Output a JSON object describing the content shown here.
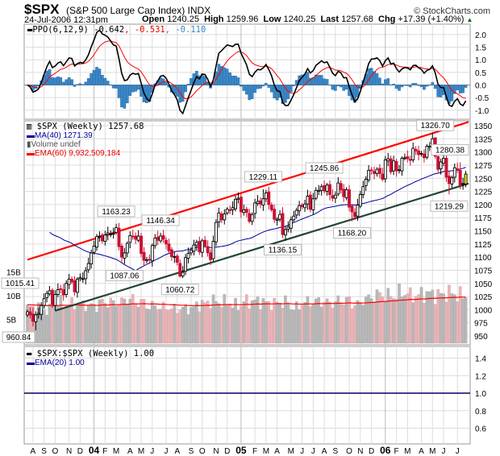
{
  "header": {
    "symbol": "$SPX",
    "name": "(S&P 500 Large Cap Index) INDX",
    "brand": "© StockCharts.com",
    "date": "24-Jul-2006 12:31pm",
    "open_label": "Open",
    "open": "1240.25",
    "high_label": "High",
    "high": "1259.96",
    "low_label": "Low",
    "low": "1240.25",
    "last_label": "Last",
    "last": "1257.68",
    "chg_label": "Chg",
    "chg": "+17.39 (+1.40%)",
    "chg_icon": "up-triangle-icon"
  },
  "ppo_legend": {
    "name": "PPO(6,12,9)",
    "v1": "-0.642",
    "v2": ", -0.531",
    "v3": ", -0.110"
  },
  "price_legend": {
    "main": "$SPX (Weekly) 1257.68",
    "ma": "MA(40) 1271.39",
    "volume": "Volume undef",
    "ema": "EMA(60) 9,932,509,184"
  },
  "ratio_legend": {
    "main": "$SPX:$SPX (Weekly) 1.00",
    "ema": "EMA(20) 1.00"
  },
  "colors": {
    "up": "#000000",
    "down": "#cc1133",
    "ma": "#000099",
    "ema": "#ff0000",
    "upper_trend": "#ff0000",
    "lower_trend": "#224433",
    "hist": "#3a87c8",
    "vol_up": "#b8b8b8",
    "vol_down": "#e8b4b8",
    "last": "#ffee00"
  },
  "chart_data": {
    "type": "candlestick",
    "timeframe": "weekly",
    "closes": [
      996,
      990,
      978,
      990,
      993,
      1008,
      1021,
      1031,
      1036,
      1010,
      1029,
      1038,
      1039,
      1028,
      1050,
      1058,
      1053,
      1034,
      1058,
      1061,
      1059,
      1074,
      1088,
      1108,
      1121,
      1139,
      1140,
      1131,
      1142,
      1146,
      1144,
      1145,
      1156,
      1120,
      1100,
      1108,
      1126,
      1141,
      1139,
      1134,
      1140,
      1107,
      1094,
      1095,
      1095,
      1122,
      1136,
      1132,
      1140,
      1134,
      1125,
      1112,
      1101,
      1101,
      1090,
      1064,
      1071,
      1099,
      1107,
      1113,
      1123,
      1128,
      1110,
      1131,
      1122,
      1108,
      1095,
      1130,
      1166,
      1184,
      1171,
      1182,
      1191,
      1189,
      1194,
      1210,
      1212,
      1186,
      1190,
      1185,
      1168,
      1181,
      1203,
      1206,
      1201,
      1211,
      1222,
      1200,
      1190,
      1172,
      1172,
      1181,
      1143,
      1152,
      1157,
      1171,
      1178,
      1189,
      1198,
      1196,
      1201,
      1216,
      1191,
      1211,
      1227,
      1227,
      1234,
      1226,
      1237,
      1219,
      1212,
      1218,
      1241,
      1228,
      1215,
      1228,
      1195,
      1186,
      1177,
      1199,
      1219,
      1234,
      1248,
      1265,
      1265,
      1259,
      1267,
      1259,
      1248,
      1285,
      1287,
      1262,
      1283,
      1264,
      1266,
      1288,
      1289,
      1287,
      1284,
      1307,
      1302,
      1295,
      1297,
      1289,
      1311,
      1311,
      1325,
      1292,
      1267,
      1281,
      1288,
      1252,
      1240,
      1251,
      1270,
      1265,
      1237,
      1240,
      1258
    ],
    "volume_monthly_B": [
      7.5,
      7.0,
      8.5,
      8.2,
      8.0,
      7.8,
      8.6,
      8.5,
      9.2,
      8.6,
      7.8,
      7.5,
      7.2,
      7.3,
      8.2,
      8.8,
      8.6,
      7.9,
      8.8,
      8.8,
      8.4,
      8.6,
      7.5,
      8.6,
      8.8,
      8.5,
      9.0,
      8.2,
      9.4,
      10.2,
      10.0,
      10.6,
      10.0,
      10.4,
      10.2,
      10.5,
      10.0
    ],
    "annotations": [
      {
        "label": "960.84",
        "week": 3,
        "value": 960.84,
        "type": "low"
      },
      {
        "label": "1015.41",
        "week": 0,
        "value": 1015.41,
        "type": "left"
      },
      {
        "label": "1163.23",
        "week": 32,
        "value": 1163.23,
        "type": "high"
      },
      {
        "label": "1087.06",
        "week": 35,
        "value": 1087.06,
        "type": "low"
      },
      {
        "label": "1146.34",
        "week": 48,
        "value": 1146.34,
        "type": "high"
      },
      {
        "label": "1060.72",
        "week": 55,
        "value": 1060.72,
        "type": "low"
      },
      {
        "label": "1229.11",
        "week": 85,
        "value": 1229.11,
        "type": "high"
      },
      {
        "label": "1136.15",
        "week": 92,
        "value": 1136.15,
        "type": "low"
      },
      {
        "label": "1245.86",
        "week": 107,
        "value": 1245.86,
        "type": "high"
      },
      {
        "label": "1168.20",
        "week": 117,
        "value": 1168.2,
        "type": "low"
      },
      {
        "label": "1326.70",
        "week": 147,
        "value": 1326.7,
        "type": "high"
      },
      {
        "label": "1219.29",
        "week": 152,
        "value": 1219.29,
        "type": "low"
      },
      {
        "label": "1280.38",
        "week": 156,
        "value": 1280.38,
        "type": "high"
      }
    ],
    "trendlines": [
      {
        "name": "upper",
        "from": {
          "week": 0,
          "value": 1095
        },
        "to": {
          "week": 159,
          "value": 1357
        }
      },
      {
        "name": "lower",
        "from": {
          "week": 10,
          "value": 998
        },
        "to": {
          "week": 159,
          "value": 1240
        }
      }
    ],
    "price_ticks": [
      1350,
      1325,
      1300,
      1275,
      1250,
      1225,
      1200,
      1175,
      1150,
      1125,
      1100,
      1075,
      1050,
      1025,
      1000,
      975,
      950
    ],
    "volume_ticks": [
      {
        "label": "15B",
        "value": 15
      },
      {
        "label": "10B",
        "value": 10
      },
      {
        "label": "5B",
        "value": 5
      }
    ],
    "ppo_ticks": [
      "2.0",
      "1.5",
      "1.0",
      "0.5",
      "0.0",
      "-0.5",
      "-1.0"
    ],
    "ratio_ticks": [
      "1.4",
      "1.2",
      "1.0",
      "0.8",
      "0.6"
    ],
    "ratio_value": 1.0,
    "months": [
      {
        "label": "A",
        "week": 2
      },
      {
        "label": "S",
        "week": 6
      },
      {
        "label": "O",
        "week": 10
      },
      {
        "label": "N",
        "week": 15
      },
      {
        "label": "D",
        "week": 19
      },
      {
        "label": "04",
        "week": 24,
        "year": true
      },
      {
        "label": "F",
        "week": 28
      },
      {
        "label": "M",
        "week": 32
      },
      {
        "label": "A",
        "week": 37
      },
      {
        "label": "M",
        "week": 41
      },
      {
        "label": "J",
        "week": 45
      },
      {
        "label": "J",
        "week": 50
      },
      {
        "label": "A",
        "week": 54
      },
      {
        "label": "S",
        "week": 59
      },
      {
        "label": "O",
        "week": 63
      },
      {
        "label": "N",
        "week": 68
      },
      {
        "label": "D",
        "week": 72
      },
      {
        "label": "05",
        "week": 77,
        "year": true
      },
      {
        "label": "F",
        "week": 82
      },
      {
        "label": "M",
        "week": 86
      },
      {
        "label": "A",
        "week": 90
      },
      {
        "label": "M",
        "week": 95
      },
      {
        "label": "J",
        "week": 99
      },
      {
        "label": "J",
        "week": 103
      },
      {
        "label": "A",
        "week": 107
      },
      {
        "label": "S",
        "week": 111
      },
      {
        "label": "O",
        "week": 116
      },
      {
        "label": "N",
        "week": 120
      },
      {
        "label": "D",
        "week": 124
      },
      {
        "label": "06",
        "week": 129,
        "year": true
      },
      {
        "label": "F",
        "week": 133
      },
      {
        "label": "M",
        "week": 137
      },
      {
        "label": "A",
        "week": 142
      },
      {
        "label": "M",
        "week": 146
      },
      {
        "label": "J",
        "week": 150
      },
      {
        "label": "J",
        "week": 155
      }
    ]
  }
}
